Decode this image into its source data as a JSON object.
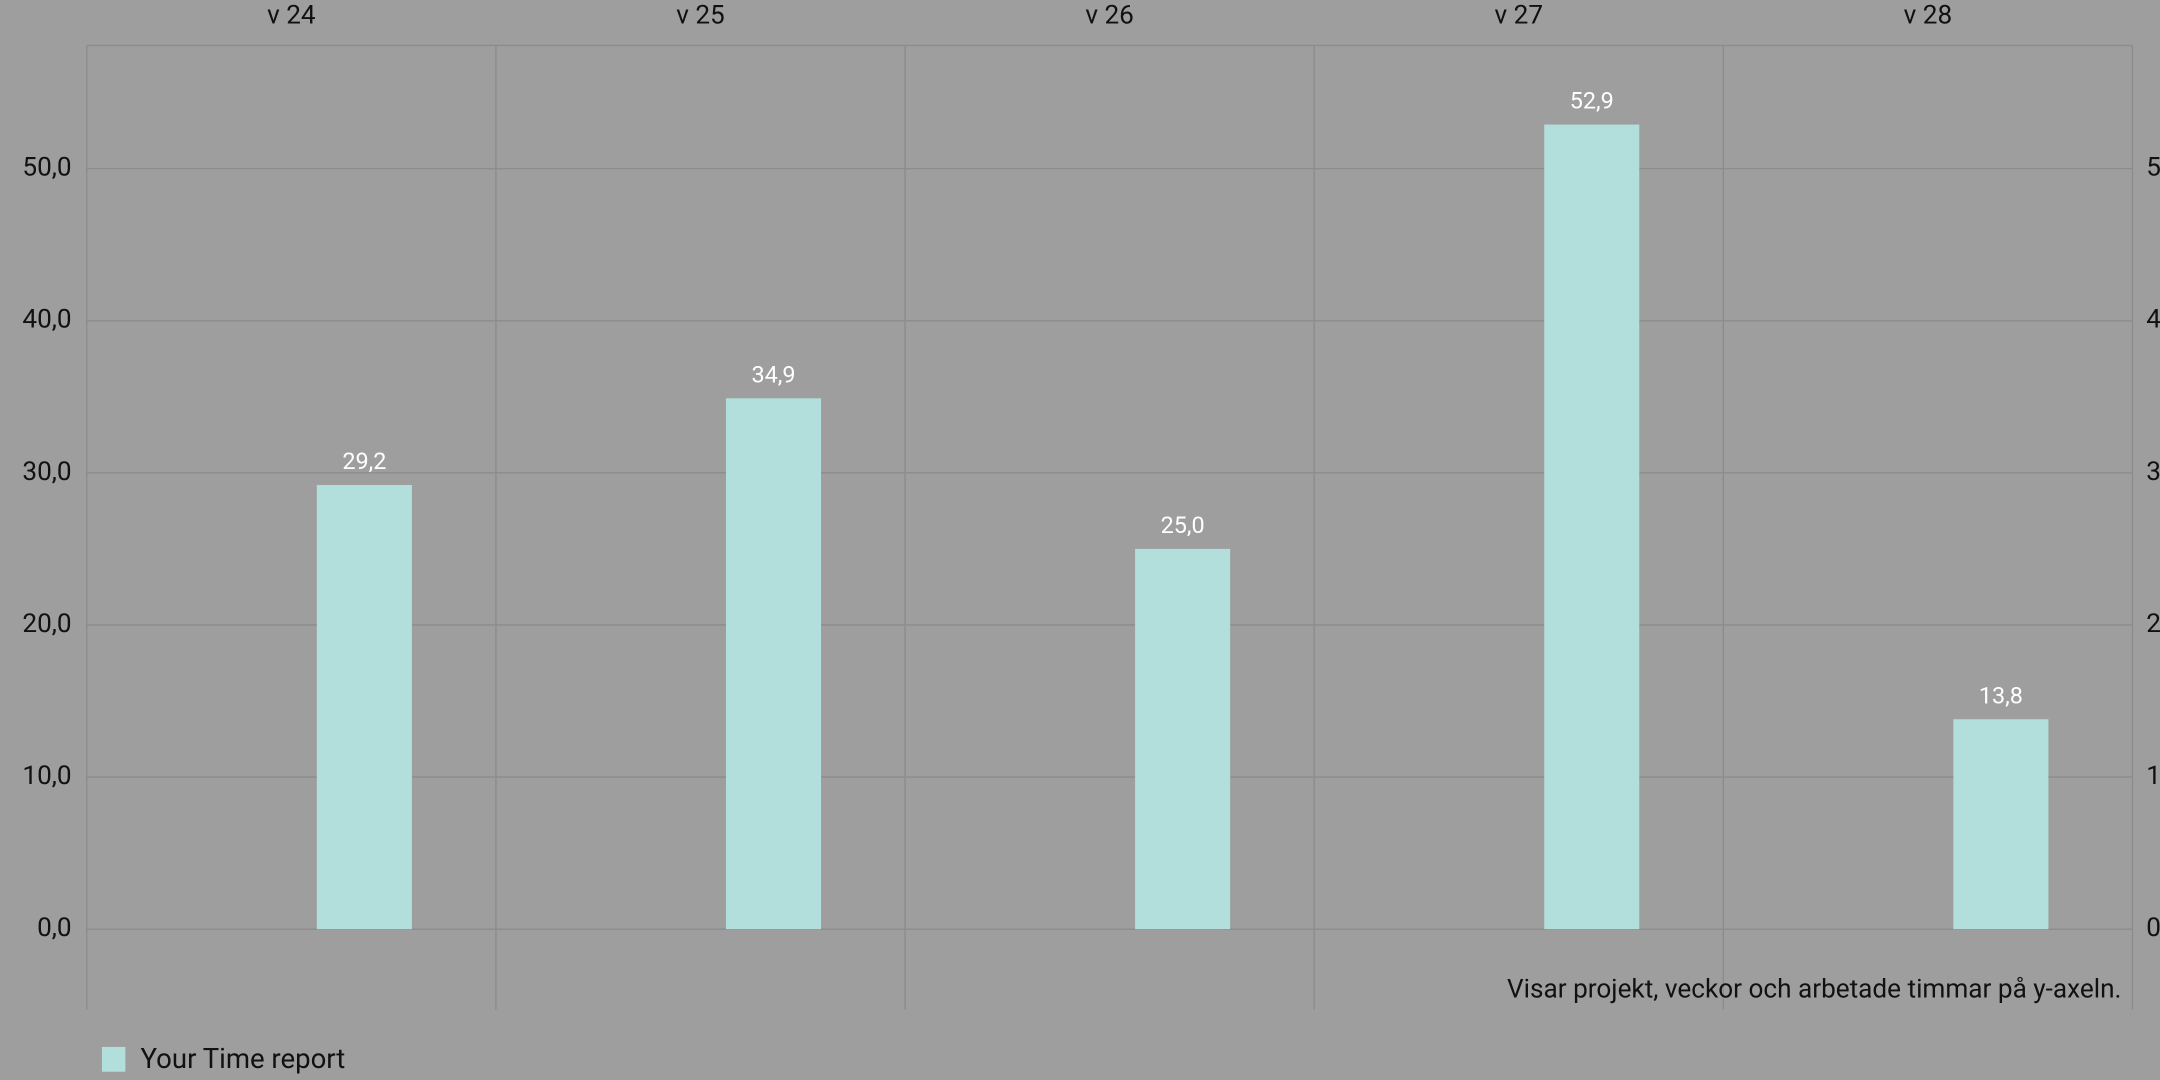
{
  "chart_data": {
    "type": "bar",
    "categories": [
      "v 24",
      "v 25",
      "v 26",
      "v 27",
      "v 28"
    ],
    "series": [
      {
        "name": "Your Time report",
        "color": "#b2dfdb",
        "values": [
          29.2,
          34.9,
          25.0,
          52.9,
          13.8
        ],
        "value_labels": [
          "29,2",
          "34,9",
          "25,0",
          "52,9",
          "13,8"
        ]
      }
    ],
    "ylim": [
      -5.3,
      58.1
    ],
    "yticks": [
      {
        "value": 0,
        "label": "0,0"
      },
      {
        "value": 10,
        "label": "10,0"
      },
      {
        "value": 20,
        "label": "20,0"
      },
      {
        "value": 30,
        "label": "30,0"
      },
      {
        "value": 40,
        "label": "40,0"
      },
      {
        "value": 50,
        "label": "50,0"
      }
    ],
    "grid": true,
    "note": "Visar projekt, veckor och arbetade timmar på y-axeln."
  }
}
